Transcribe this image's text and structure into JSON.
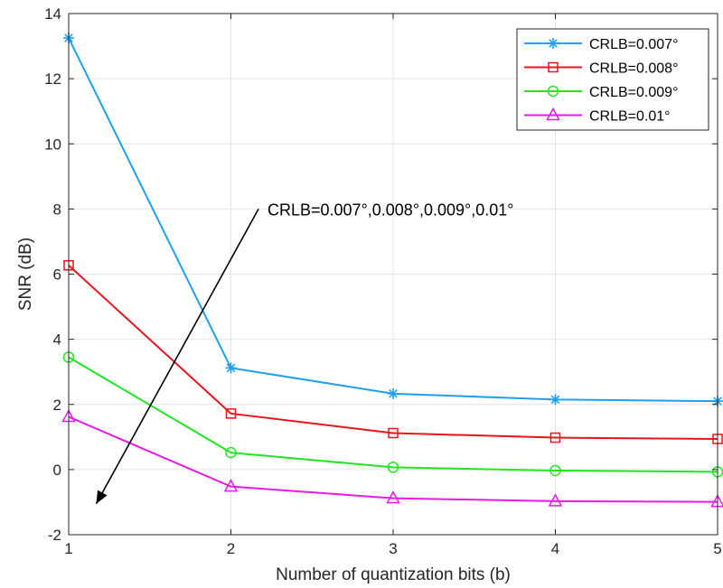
{
  "chart_data": {
    "type": "line",
    "title": "",
    "xlabel": "Number of quantization bits (b)",
    "ylabel": "SNR (dB)",
    "xlim": [
      1,
      5
    ],
    "ylim": [
      -2,
      14
    ],
    "xticks": [
      1,
      2,
      3,
      4,
      5
    ],
    "yticks": [
      -2,
      0,
      2,
      4,
      6,
      8,
      10,
      12,
      14
    ],
    "grid": true,
    "legend_position": "top-right",
    "x": [
      1,
      2,
      3,
      4,
      5
    ],
    "series": [
      {
        "name": "CRLB=0.007°",
        "color": "#1e9ff0",
        "marker": "asterisk",
        "values": [
          13.25,
          3.12,
          2.33,
          2.15,
          2.1
        ]
      },
      {
        "name": "CRLB=0.008°",
        "color": "#e8141c",
        "marker": "square",
        "values": [
          6.27,
          1.72,
          1.12,
          0.98,
          0.94
        ]
      },
      {
        "name": "CRLB=0.009°",
        "color": "#1fe61f",
        "marker": "circle",
        "values": [
          3.45,
          0.52,
          0.07,
          -0.03,
          -0.07
        ]
      },
      {
        "name": "CRLB=0.01°",
        "color": "#e619e6",
        "marker": "triangle",
        "values": [
          1.62,
          -0.52,
          -0.88,
          -0.97,
          -0.99
        ]
      }
    ],
    "annotation": {
      "text": "CRLB=0.007°,0.008°,0.009°,0.01°",
      "arrow_from": [
        2.17,
        8.0
      ],
      "arrow_to": [
        1.17,
        -1.05
      ]
    }
  }
}
